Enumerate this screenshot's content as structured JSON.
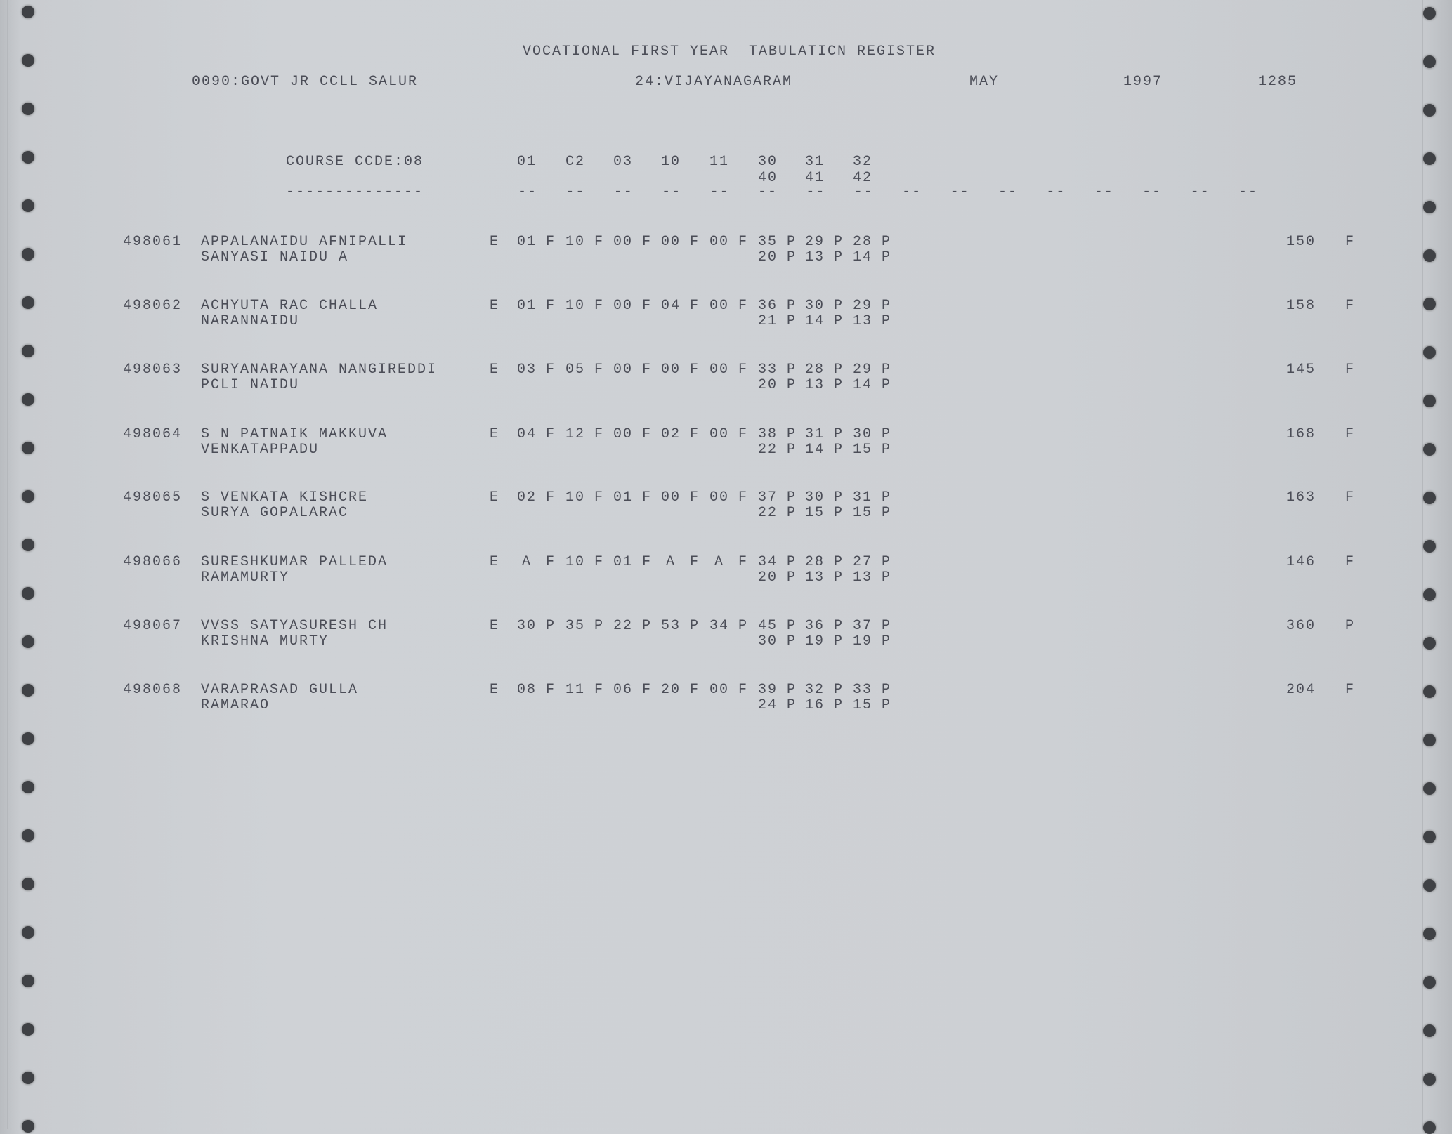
{
  "header": {
    "title": "VOCATIONAL FIRST YEAR  TABULATICN REGISTER",
    "college": "0090:GOVT JR CCLL SALUR",
    "district": "24:VIJAYANAGARAM",
    "month": "MAY",
    "year": "1997",
    "page": "1285"
  },
  "course": {
    "label": "COURSE CCDE:08",
    "dashes": "--------------",
    "subject_codes_row1": [
      "01",
      "C2",
      "03",
      "10",
      "11",
      "30",
      "31",
      "32"
    ],
    "subject_codes_row2": [
      "40",
      "41",
      "42"
    ],
    "column_dash": "--"
  },
  "rows": [
    {
      "roll": "498061",
      "name1": "APPALANAIDU AFNIPALLI",
      "name2": "SANYASI NAIDU A",
      "medium": "E",
      "marks1": [
        [
          "01",
          "F"
        ],
        [
          "10",
          "F"
        ],
        [
          "00",
          "F"
        ],
        [
          "00",
          "F"
        ],
        [
          "00",
          "F"
        ],
        [
          "35",
          "P"
        ],
        [
          "29",
          "P"
        ],
        [
          "28",
          "P"
        ]
      ],
      "marks2": [
        [
          "20",
          "P"
        ],
        [
          "13",
          "P"
        ],
        [
          "14",
          "P"
        ]
      ],
      "total": "150",
      "result": "F"
    },
    {
      "roll": "498062",
      "name1": "ACHYUTA RAC CHALLA",
      "name2": "NARANNAIDU",
      "medium": "E",
      "marks1": [
        [
          "01",
          "F"
        ],
        [
          "10",
          "F"
        ],
        [
          "00",
          "F"
        ],
        [
          "04",
          "F"
        ],
        [
          "00",
          "F"
        ],
        [
          "36",
          "P"
        ],
        [
          "30",
          "P"
        ],
        [
          "29",
          "P"
        ]
      ],
      "marks2": [
        [
          "21",
          "P"
        ],
        [
          "14",
          "P"
        ],
        [
          "13",
          "P"
        ]
      ],
      "total": "158",
      "result": "F"
    },
    {
      "roll": "498063",
      "name1": "SURYANARAYANA NANGIREDDI",
      "name2": "PCLI NAIDU",
      "medium": "E",
      "marks1": [
        [
          "03",
          "F"
        ],
        [
          "05",
          "F"
        ],
        [
          "00",
          "F"
        ],
        [
          "00",
          "F"
        ],
        [
          "00",
          "F"
        ],
        [
          "33",
          "P"
        ],
        [
          "28",
          "P"
        ],
        [
          "29",
          "P"
        ]
      ],
      "marks2": [
        [
          "20",
          "P"
        ],
        [
          "13",
          "P"
        ],
        [
          "14",
          "P"
        ]
      ],
      "total": "145",
      "result": "F"
    },
    {
      "roll": "498064",
      "name1": "S N PATNAIK MAKKUVA",
      "name2": "VENKATAPPADU",
      "medium": "E",
      "marks1": [
        [
          "04",
          "F"
        ],
        [
          "12",
          "F"
        ],
        [
          "00",
          "F"
        ],
        [
          "02",
          "F"
        ],
        [
          "00",
          "F"
        ],
        [
          "38",
          "P"
        ],
        [
          "31",
          "P"
        ],
        [
          "30",
          "P"
        ]
      ],
      "marks2": [
        [
          "22",
          "P"
        ],
        [
          "14",
          "P"
        ],
        [
          "15",
          "P"
        ]
      ],
      "total": "168",
      "result": "F"
    },
    {
      "roll": "498065",
      "name1": "S VENKATA KISHCRE",
      "name2": "SURYA GOPALARAC",
      "medium": "E",
      "marks1": [
        [
          "02",
          "F"
        ],
        [
          "10",
          "F"
        ],
        [
          "01",
          "F"
        ],
        [
          "00",
          "F"
        ],
        [
          "00",
          "F"
        ],
        [
          "37",
          "P"
        ],
        [
          "30",
          "P"
        ],
        [
          "31",
          "P"
        ]
      ],
      "marks2": [
        [
          "22",
          "P"
        ],
        [
          "15",
          "P"
        ],
        [
          "15",
          "P"
        ]
      ],
      "total": "163",
      "result": "F"
    },
    {
      "roll": "498066",
      "name1": "SURESHKUMAR PALLEDA",
      "name2": "RAMAMURTY",
      "medium": "E",
      "marks1": [
        [
          "A",
          "F"
        ],
        [
          "10",
          "F"
        ],
        [
          "01",
          "F"
        ],
        [
          "A",
          "F"
        ],
        [
          "A",
          "F"
        ],
        [
          "34",
          "P"
        ],
        [
          "28",
          "P"
        ],
        [
          "27",
          "P"
        ]
      ],
      "marks2": [
        [
          "20",
          "P"
        ],
        [
          "13",
          "P"
        ],
        [
          "13",
          "P"
        ]
      ],
      "total": "146",
      "result": "F"
    },
    {
      "roll": "498067",
      "name1": "VVSS SATYASURESH CH",
      "name2": "KRISHNA MURTY",
      "medium": "E",
      "marks1": [
        [
          "30",
          "P"
        ],
        [
          "35",
          "P"
        ],
        [
          "22",
          "P"
        ],
        [
          "53",
          "P"
        ],
        [
          "34",
          "P"
        ],
        [
          "45",
          "P"
        ],
        [
          "36",
          "P"
        ],
        [
          "37",
          "P"
        ]
      ],
      "marks2": [
        [
          "30",
          "P"
        ],
        [
          "19",
          "P"
        ],
        [
          "19",
          "P"
        ]
      ],
      "total": "360",
      "result": "P"
    },
    {
      "roll": "498068",
      "name1": "VARAPRASAD GULLA",
      "name2": "RAMARAO",
      "medium": "E",
      "marks1": [
        [
          "08",
          "F"
        ],
        [
          "11",
          "F"
        ],
        [
          "06",
          "F"
        ],
        [
          "20",
          "F"
        ],
        [
          "00",
          "F"
        ],
        [
          "39",
          "P"
        ],
        [
          "32",
          "P"
        ],
        [
          "33",
          "P"
        ]
      ],
      "marks2": [
        [
          "24",
          "P"
        ],
        [
          "16",
          "P"
        ],
        [
          "15",
          "P"
        ]
      ],
      "total": "204",
      "result": "F"
    }
  ]
}
